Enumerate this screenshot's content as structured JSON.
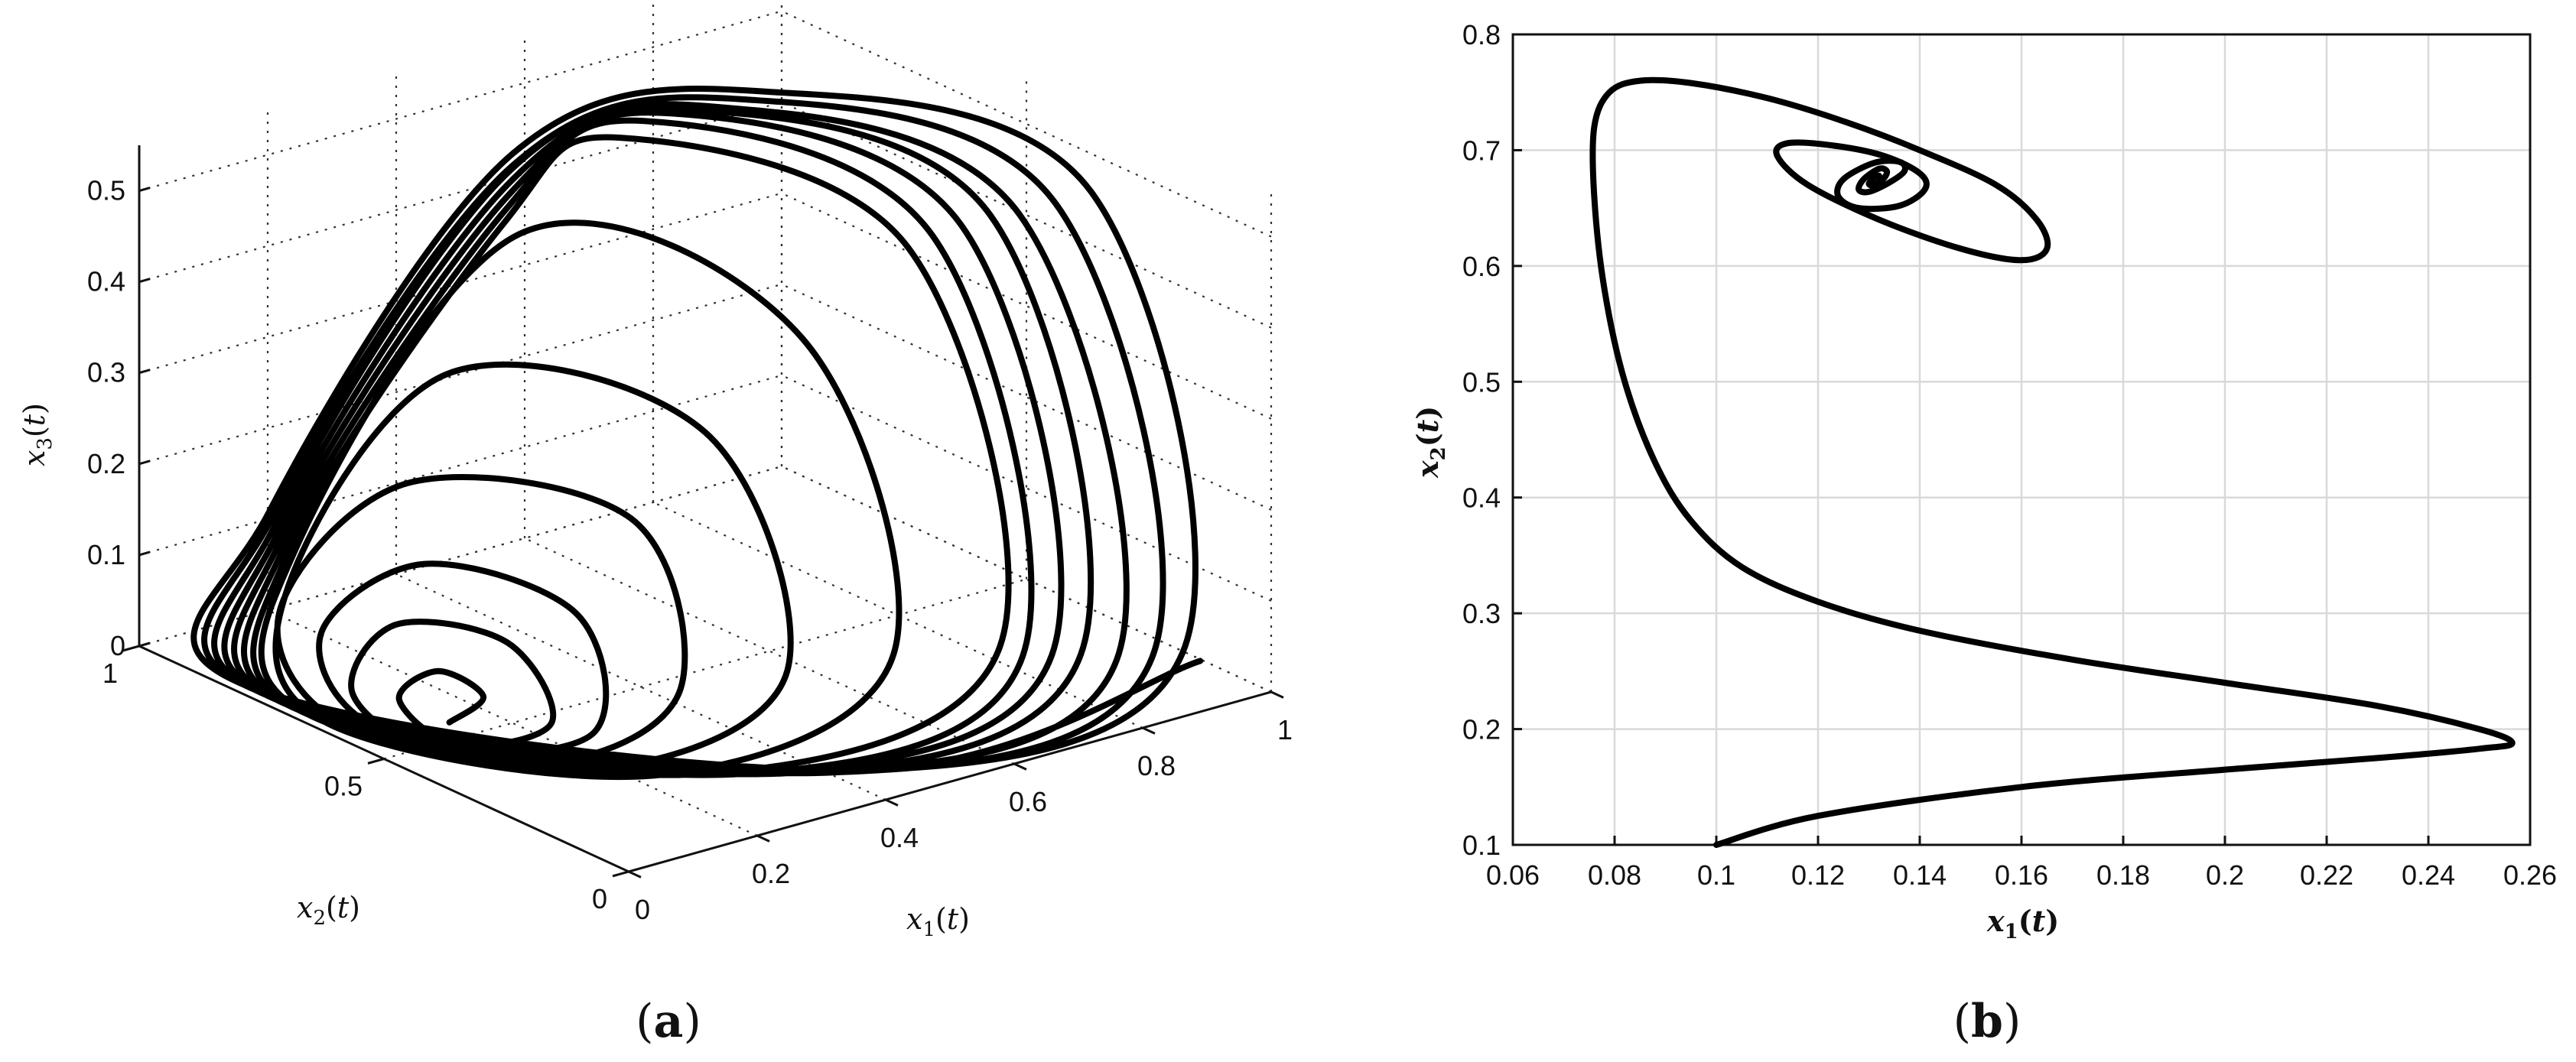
{
  "panels": {
    "a": {
      "open": "(",
      "letter": "a",
      "close": ")"
    },
    "b": {
      "open": "(",
      "letter": "b",
      "close": ")"
    }
  },
  "chart_data": [
    {
      "id": "a",
      "type": "line",
      "projection": "3d",
      "xlabel": "x1(t)",
      "ylabel": "x2(t)",
      "zlabel": "x3(t)",
      "xlim": [
        0,
        1
      ],
      "ylim": [
        0,
        1
      ],
      "zlim": [
        0,
        0.55
      ],
      "xticks": [
        "0",
        "0.2",
        "0.4",
        "0.6",
        "0.8",
        "1"
      ],
      "yticks": [
        "0",
        "0.5",
        "1"
      ],
      "zticks": [
        "0",
        "0.1",
        "0.2",
        "0.3",
        "0.4",
        "0.5"
      ],
      "grid": true,
      "line_color": "#000000",
      "points": [
        [
          0.14,
          0.55,
          0.0
        ],
        [
          0.17,
          0.52,
          0.03
        ],
        [
          0.16,
          0.6,
          0.04
        ],
        [
          0.1,
          0.6,
          0.02
        ],
        [
          0.1,
          0.48,
          0.0
        ],
        [
          0.2,
          0.42,
          0.02
        ],
        [
          0.23,
          0.55,
          0.07
        ],
        [
          0.14,
          0.66,
          0.08
        ],
        [
          0.05,
          0.63,
          0.03
        ],
        [
          0.07,
          0.48,
          0.0
        ],
        [
          0.22,
          0.36,
          0.02
        ],
        [
          0.3,
          0.5,
          0.1
        ],
        [
          0.2,
          0.68,
          0.13
        ],
        [
          0.07,
          0.72,
          0.07
        ],
        [
          0.04,
          0.58,
          0.01
        ],
        [
          0.16,
          0.36,
          0.0
        ],
        [
          0.34,
          0.34,
          0.05
        ],
        [
          0.4,
          0.52,
          0.18
        ],
        [
          0.22,
          0.74,
          0.2
        ],
        [
          0.05,
          0.78,
          0.08
        ],
        [
          0.03,
          0.6,
          0.0
        ],
        [
          0.2,
          0.3,
          0.0
        ],
        [
          0.46,
          0.28,
          0.06
        ],
        [
          0.5,
          0.5,
          0.26
        ],
        [
          0.3,
          0.76,
          0.3
        ],
        [
          0.08,
          0.8,
          0.1
        ],
        [
          0.02,
          0.64,
          0.0
        ],
        [
          0.24,
          0.24,
          0.0
        ],
        [
          0.58,
          0.22,
          0.07
        ],
        [
          0.62,
          0.46,
          0.35
        ],
        [
          0.4,
          0.74,
          0.44
        ],
        [
          0.12,
          0.84,
          0.12
        ],
        [
          0.02,
          0.68,
          0.0
        ],
        [
          0.3,
          0.2,
          0.0
        ],
        [
          0.7,
          0.16,
          0.07
        ],
        [
          0.74,
          0.4,
          0.44
        ],
        [
          0.52,
          0.7,
          0.53
        ],
        [
          0.4,
          0.78,
          0.44
        ],
        [
          0.13,
          0.86,
          0.12
        ],
        [
          0.02,
          0.7,
          0.0
        ],
        [
          0.32,
          0.18,
          0.0
        ],
        [
          0.72,
          0.14,
          0.06
        ],
        [
          0.77,
          0.39,
          0.45
        ],
        [
          0.55,
          0.69,
          0.545
        ],
        [
          0.41,
          0.79,
          0.45
        ],
        [
          0.14,
          0.88,
          0.12
        ],
        [
          0.02,
          0.72,
          0.0
        ],
        [
          0.34,
          0.17,
          0.0
        ],
        [
          0.75,
          0.12,
          0.06
        ],
        [
          0.8,
          0.37,
          0.46
        ],
        [
          0.58,
          0.68,
          0.55
        ],
        [
          0.42,
          0.8,
          0.46
        ],
        [
          0.15,
          0.9,
          0.12
        ],
        [
          0.02,
          0.74,
          0.0
        ],
        [
          0.36,
          0.15,
          0.0
        ],
        [
          0.78,
          0.1,
          0.06
        ],
        [
          0.83,
          0.35,
          0.47
        ],
        [
          0.61,
          0.67,
          0.55
        ],
        [
          0.43,
          0.81,
          0.47
        ],
        [
          0.16,
          0.92,
          0.12
        ],
        [
          0.02,
          0.76,
          0.0
        ],
        [
          0.38,
          0.14,
          0.0
        ],
        [
          0.82,
          0.08,
          0.05
        ],
        [
          0.86,
          0.33,
          0.47
        ],
        [
          0.64,
          0.66,
          0.55
        ],
        [
          0.44,
          0.82,
          0.48
        ],
        [
          0.17,
          0.94,
          0.12
        ],
        [
          0.02,
          0.78,
          0.0
        ],
        [
          0.4,
          0.12,
          0.0
        ],
        [
          0.86,
          0.06,
          0.05
        ],
        [
          0.9,
          0.31,
          0.48
        ],
        [
          0.67,
          0.65,
          0.555
        ],
        [
          0.45,
          0.83,
          0.48
        ],
        [
          0.18,
          0.96,
          0.12
        ],
        [
          0.02,
          0.8,
          0.0
        ],
        [
          0.42,
          0.11,
          0.0
        ],
        [
          0.9,
          0.05,
          0.05
        ],
        [
          0.94,
          0.29,
          0.49
        ],
        [
          0.7,
          0.64,
          0.56
        ],
        [
          0.46,
          0.84,
          0.49
        ],
        [
          0.18,
          0.97,
          0.12
        ],
        [
          0.02,
          0.82,
          0.0
        ],
        [
          0.44,
          0.1,
          0.0
        ],
        [
          0.92,
          0.04,
          0.04
        ]
      ]
    },
    {
      "id": "b",
      "type": "line",
      "xlabel": "x1(t)",
      "ylabel": "x2(t)",
      "xlim": [
        0.06,
        0.26
      ],
      "ylim": [
        0.1,
        0.8
      ],
      "xticks": [
        "0.06",
        "0.08",
        "0.1",
        "0.12",
        "0.14",
        "0.16",
        "0.18",
        "0.2",
        "0.22",
        "0.24",
        "0.26"
      ],
      "yticks": [
        "0.1",
        "0.2",
        "0.3",
        "0.4",
        "0.5",
        "0.6",
        "0.7",
        "0.8"
      ],
      "grid": true,
      "line_color": "#000000",
      "x": [
        0.1,
        0.12,
        0.16,
        0.2,
        0.23,
        0.25,
        0.2565,
        0.25,
        0.23,
        0.2,
        0.17,
        0.14,
        0.12,
        0.105,
        0.095,
        0.088,
        0.082,
        0.078,
        0.076,
        0.076,
        0.079,
        0.085,
        0.095,
        0.11,
        0.125,
        0.14,
        0.155,
        0.163,
        0.165,
        0.16,
        0.148,
        0.132,
        0.118,
        0.112,
        0.114,
        0.123,
        0.133,
        0.14,
        0.141,
        0.136,
        0.128,
        0.124,
        0.125,
        0.131,
        0.136,
        0.137,
        0.134,
        0.13,
        0.128,
        0.129,
        0.132,
        0.1335,
        0.133,
        0.131,
        0.13,
        0.131,
        0.132
      ],
      "y": [
        0.1,
        0.125,
        0.15,
        0.165,
        0.175,
        0.183,
        0.188,
        0.2,
        0.22,
        0.24,
        0.26,
        0.285,
        0.31,
        0.34,
        0.38,
        0.43,
        0.5,
        0.58,
        0.66,
        0.72,
        0.75,
        0.76,
        0.758,
        0.745,
        0.725,
        0.7,
        0.67,
        0.64,
        0.615,
        0.605,
        0.615,
        0.64,
        0.67,
        0.695,
        0.706,
        0.704,
        0.695,
        0.68,
        0.666,
        0.652,
        0.65,
        0.66,
        0.675,
        0.689,
        0.69,
        0.682,
        0.672,
        0.664,
        0.666,
        0.675,
        0.684,
        0.682,
        0.676,
        0.67,
        0.671,
        0.676,
        0.678
      ]
    }
  ]
}
